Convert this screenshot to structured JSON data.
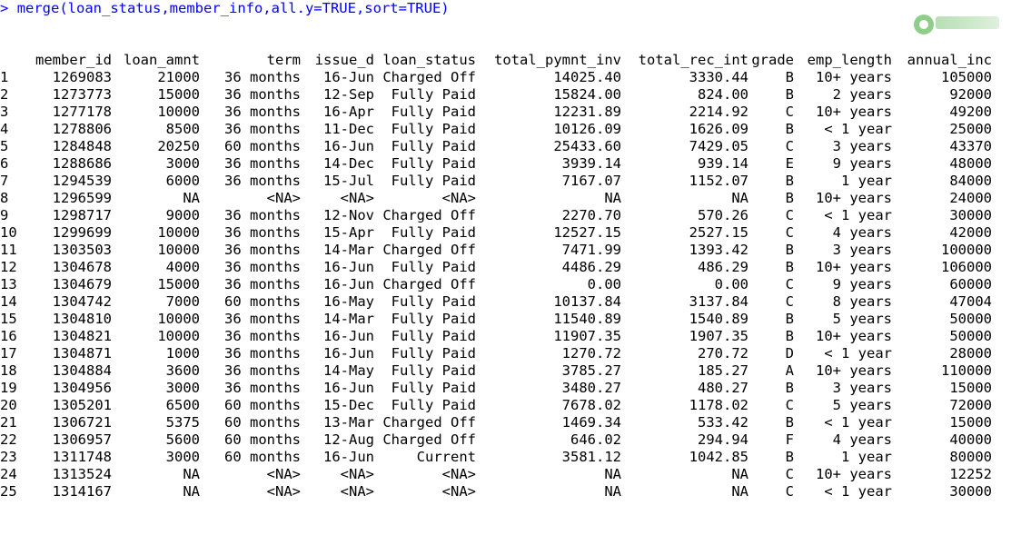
{
  "console": {
    "prompt": ">",
    "command": "merge(loan_status,member_info,all.y=TRUE,sort=TRUE)"
  },
  "table": {
    "headers": [
      "",
      "member_id",
      "loan_amnt",
      "term",
      "issue_d",
      "loan_status",
      "total_pymnt_inv",
      "total_rec_int",
      "grade",
      "emp_length",
      "annual_inc"
    ],
    "rows": [
      [
        "1",
        "1269083",
        "21000",
        "36 months",
        "16-Jun",
        "Charged Off",
        "14025.40",
        "3330.44",
        "B",
        "10+ years",
        "105000"
      ],
      [
        "2",
        "1273773",
        "15000",
        "36 months",
        "12-Sep",
        "Fully Paid",
        "15824.00",
        "824.00",
        "B",
        "2 years",
        "92000"
      ],
      [
        "3",
        "1277178",
        "10000",
        "36 months",
        "16-Apr",
        "Fully Paid",
        "12231.89",
        "2214.92",
        "C",
        "10+ years",
        "49200"
      ],
      [
        "4",
        "1278806",
        "8500",
        "36 months",
        "11-Dec",
        "Fully Paid",
        "10126.09",
        "1626.09",
        "B",
        "< 1 year",
        "25000"
      ],
      [
        "5",
        "1284848",
        "20250",
        "60 months",
        "16-Jun",
        "Fully Paid",
        "25433.60",
        "7429.05",
        "C",
        "3 years",
        "43370"
      ],
      [
        "6",
        "1288686",
        "3000",
        "36 months",
        "14-Dec",
        "Fully Paid",
        "3939.14",
        "939.14",
        "E",
        "9 years",
        "48000"
      ],
      [
        "7",
        "1294539",
        "6000",
        "36 months",
        "15-Jul",
        "Fully Paid",
        "7167.07",
        "1152.07",
        "B",
        "1 year",
        "84000"
      ],
      [
        "8",
        "1296599",
        "NA",
        "<NA>",
        "<NA>",
        "<NA>",
        "NA",
        "NA",
        "B",
        "10+ years",
        "24000"
      ],
      [
        "9",
        "1298717",
        "9000",
        "36 months",
        "12-Nov",
        "Charged Off",
        "2270.70",
        "570.26",
        "C",
        "< 1 year",
        "30000"
      ],
      [
        "10",
        "1299699",
        "10000",
        "36 months",
        "15-Apr",
        "Fully Paid",
        "12527.15",
        "2527.15",
        "C",
        "4 years",
        "42000"
      ],
      [
        "11",
        "1303503",
        "10000",
        "36 months",
        "14-Mar",
        "Charged Off",
        "7471.99",
        "1393.42",
        "B",
        "3 years",
        "100000"
      ],
      [
        "12",
        "1304678",
        "4000",
        "36 months",
        "16-Jun",
        "Fully Paid",
        "4486.29",
        "486.29",
        "B",
        "10+ years",
        "106000"
      ],
      [
        "13",
        "1304679",
        "15000",
        "36 months",
        "16-Jun",
        "Charged Off",
        "0.00",
        "0.00",
        "C",
        "9 years",
        "60000"
      ],
      [
        "14",
        "1304742",
        "7000",
        "60 months",
        "16-May",
        "Fully Paid",
        "10137.84",
        "3137.84",
        "C",
        "8 years",
        "47004"
      ],
      [
        "15",
        "1304810",
        "10000",
        "36 months",
        "14-Mar",
        "Fully Paid",
        "11540.89",
        "1540.89",
        "B",
        "5 years",
        "50000"
      ],
      [
        "16",
        "1304821",
        "10000",
        "36 months",
        "16-Jun",
        "Fully Paid",
        "11907.35",
        "1907.35",
        "B",
        "10+ years",
        "50000"
      ],
      [
        "17",
        "1304871",
        "1000",
        "36 months",
        "16-Jun",
        "Fully Paid",
        "1270.72",
        "270.72",
        "D",
        "< 1 year",
        "28000"
      ],
      [
        "18",
        "1304884",
        "3600",
        "36 months",
        "14-May",
        "Fully Paid",
        "3785.27",
        "185.27",
        "A",
        "10+ years",
        "110000"
      ],
      [
        "19",
        "1304956",
        "3000",
        "36 months",
        "16-Jun",
        "Fully Paid",
        "3480.27",
        "480.27",
        "B",
        "3 years",
        "15000"
      ],
      [
        "20",
        "1305201",
        "6500",
        "60 months",
        "15-Dec",
        "Fully Paid",
        "7678.02",
        "1178.02",
        "C",
        "5 years",
        "72000"
      ],
      [
        "21",
        "1306721",
        "5375",
        "60 months",
        "13-Mar",
        "Charged Off",
        "1469.34",
        "533.42",
        "B",
        "< 1 year",
        "15000"
      ],
      [
        "22",
        "1306957",
        "5600",
        "60 months",
        "12-Aug",
        "Charged Off",
        "646.02",
        "294.94",
        "F",
        "4 years",
        "40000"
      ],
      [
        "23",
        "1311748",
        "3000",
        "60 months",
        "16-Jun",
        "Current",
        "3581.12",
        "1042.85",
        "B",
        "1 year",
        "80000"
      ],
      [
        "24",
        "1313524",
        "NA",
        "<NA>",
        "<NA>",
        "<NA>",
        "NA",
        "NA",
        "C",
        "10+ years",
        "12252"
      ],
      [
        "25",
        "1314167",
        "NA",
        "<NA>",
        "<NA>",
        "<NA>",
        "NA",
        "NA",
        "C",
        "< 1 year",
        "30000"
      ]
    ]
  },
  "colors": {
    "command": "#0000ff",
    "text": "#000000",
    "background": "#ffffff",
    "watermark": "#7cc576"
  }
}
